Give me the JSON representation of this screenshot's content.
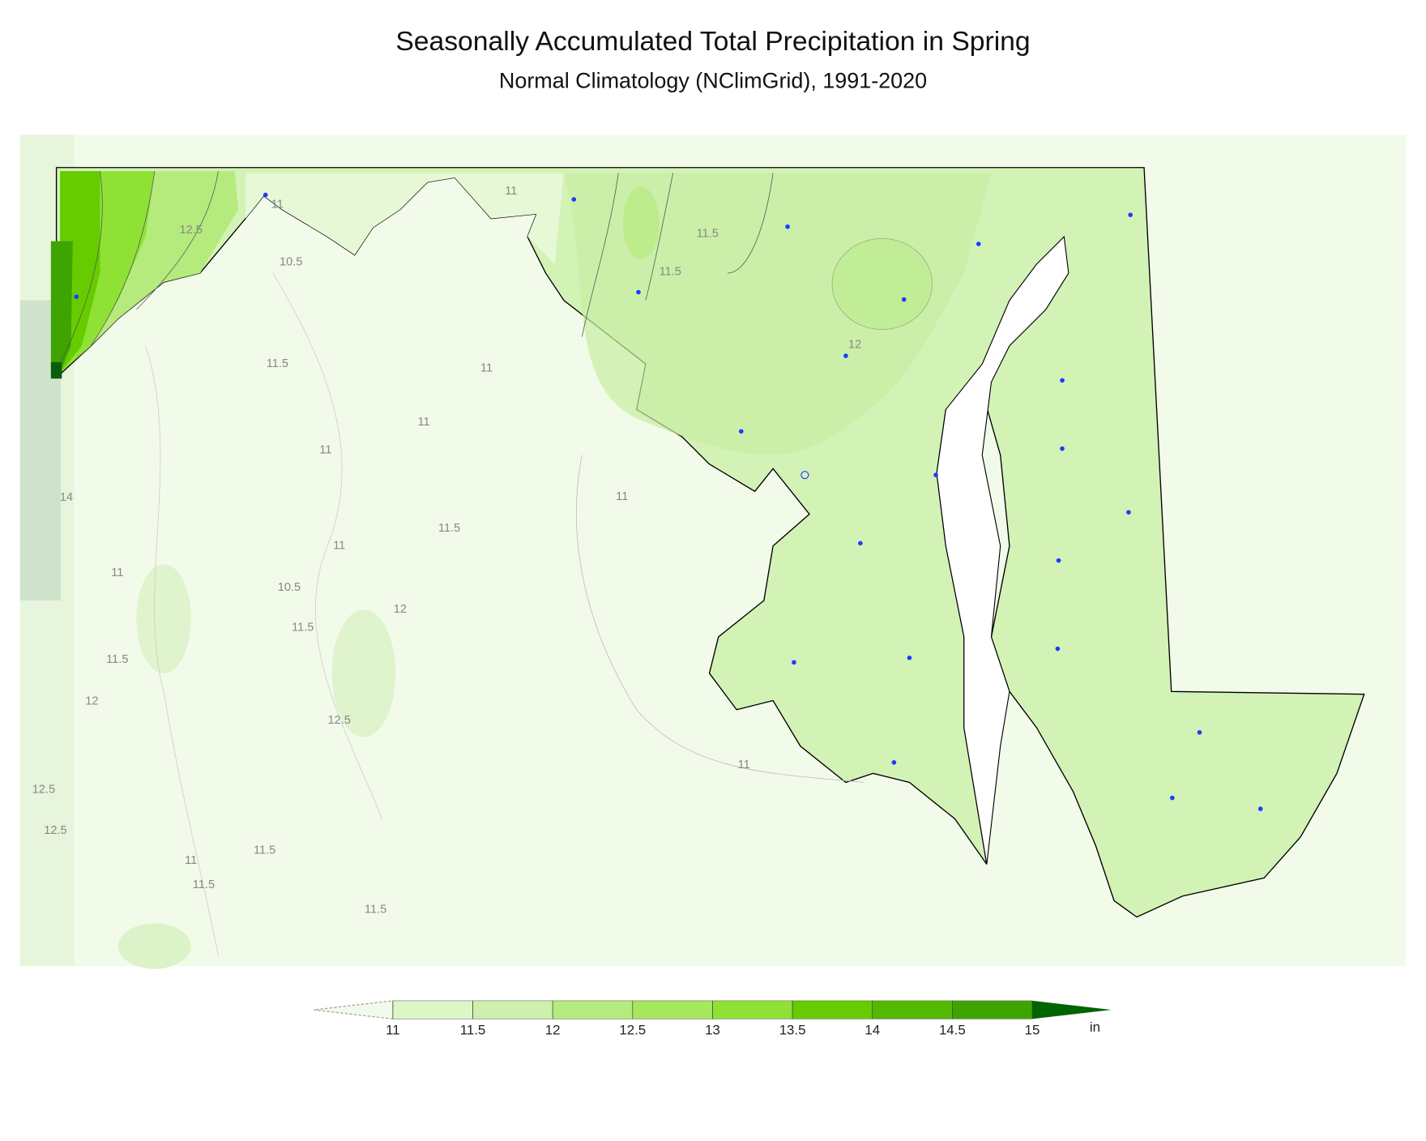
{
  "header": {
    "title": "Seasonally Accumulated Total Precipitation in Spring",
    "subtitle": "Normal Climatology (NClimGrid), 1991-2020"
  },
  "map": {
    "contour_labels": [
      "11",
      "12.5",
      "10.5",
      "11",
      "11.5",
      "11.5",
      "12",
      "11.5",
      "11",
      "11",
      "11",
      "14",
      "11",
      "11.5",
      "11",
      "11",
      "10.5",
      "12",
      "11.5",
      "11.5",
      "12",
      "12.5",
      "11",
      "12.5",
      "12.5",
      "11.5",
      "11",
      "11.5",
      "11.5"
    ]
  },
  "colorbar": {
    "ticks": [
      11,
      11.5,
      12,
      12.5,
      13,
      13.5,
      14,
      14.5,
      15
    ],
    "colors": [
      "#ddf6c6",
      "#cdf0ad",
      "#b5eb7c",
      "#a5e75d",
      "#8fe235",
      "#66cc00",
      "#52b900",
      "#3ea400"
    ],
    "under_color": "#f2fbea",
    "over_color": "#006400",
    "unit": "in"
  }
}
